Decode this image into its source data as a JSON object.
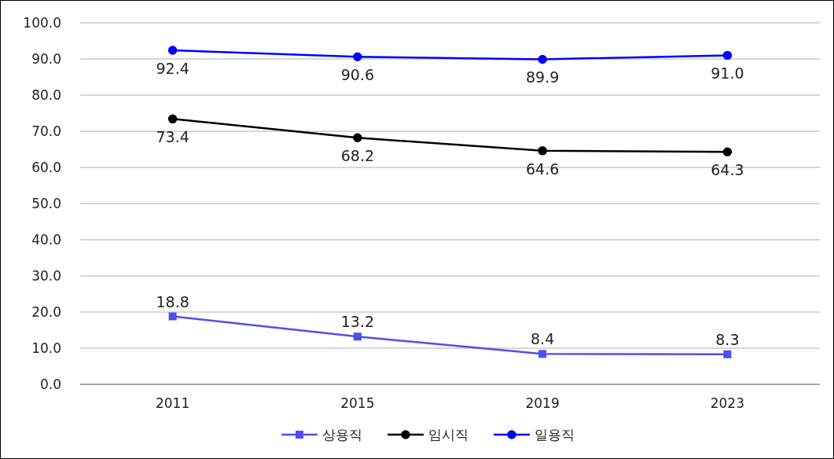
{
  "chart_data": {
    "type": "line",
    "categories": [
      "2011",
      "2015",
      "2019",
      "2023"
    ],
    "series": [
      {
        "name": "상용직",
        "color": "#4f4fef",
        "values": [
          18.8,
          13.2,
          8.4,
          8.3
        ],
        "value_labels": [
          "18.8",
          "13.2",
          "8.4",
          "8.3"
        ],
        "marker": "square"
      },
      {
        "name": "임시직",
        "color": "#000000",
        "values": [
          73.4,
          68.2,
          64.6,
          64.3
        ],
        "value_labels": [
          "73.4",
          "68.2",
          "64.6",
          "64.3"
        ],
        "marker": "circle"
      },
      {
        "name": "일용직",
        "color": "#0000ff",
        "values": [
          92.4,
          90.6,
          89.9,
          91.0
        ],
        "value_labels": [
          "92.4",
          "90.6",
          "89.9",
          "91.0"
        ],
        "marker": "circle"
      }
    ],
    "ylim": [
      0,
      100
    ],
    "yticks": [
      {
        "value": 0,
        "label": "0.0"
      },
      {
        "value": 10,
        "label": "10.0"
      },
      {
        "value": 20,
        "label": "20.0"
      },
      {
        "value": 30,
        "label": "30.0"
      },
      {
        "value": 40,
        "label": "40.0"
      },
      {
        "value": 50,
        "label": "50.0"
      },
      {
        "value": 60,
        "label": "60.0"
      },
      {
        "value": 70,
        "label": "70.0"
      },
      {
        "value": 80,
        "label": "80.0"
      },
      {
        "value": 90,
        "label": "90.0"
      },
      {
        "value": 100,
        "label": "100.0"
      }
    ],
    "grid": "y",
    "legend": "bottom",
    "line_style": "solid"
  }
}
